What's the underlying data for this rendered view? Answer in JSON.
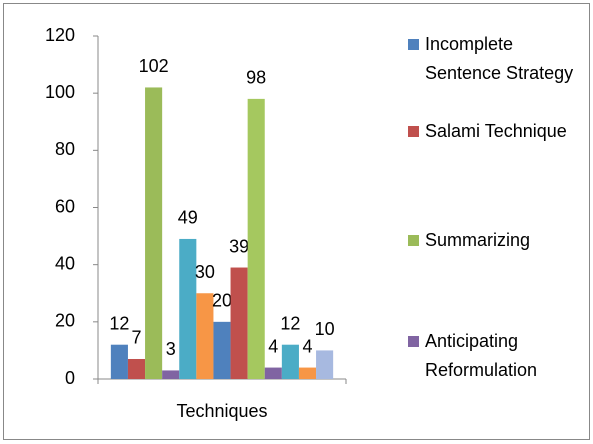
{
  "chart_data": {
    "type": "bar",
    "categories": [
      "Techniques"
    ],
    "series": [
      {
        "name": "Incomplete Sentence Strategy",
        "color": "#4f81bd",
        "values": [
          12
        ]
      },
      {
        "name": "Salami Technique",
        "color": "#c0504d",
        "values": [
          7
        ]
      },
      {
        "name": "Summarizing",
        "color": "#9bbb59",
        "values": [
          102
        ]
      },
      {
        "name": "Anticipating Reformulation",
        "color": "#8064a2",
        "values": [
          3
        ]
      },
      {
        "color": "#4bacc6",
        "values": [
          49
        ]
      },
      {
        "color": "#f79646",
        "values": [
          30
        ]
      },
      {
        "color": "#4f81bd",
        "values": [
          20
        ]
      },
      {
        "color": "#c0504d",
        "values": [
          39
        ]
      },
      {
        "color": "#a5c85f",
        "values": [
          98
        ]
      },
      {
        "color": "#8064a2",
        "values": [
          4
        ]
      },
      {
        "color": "#4bacc6",
        "values": [
          12
        ]
      },
      {
        "color": "#f79646",
        "values": [
          4
        ]
      },
      {
        "color": "#a7b9e0",
        "values": [
          10
        ]
      }
    ],
    "ylim": [
      0,
      120
    ],
    "yticks": [
      0,
      20,
      40,
      60,
      80,
      100,
      120
    ],
    "grid": false,
    "legend": "right",
    "data_labels": true
  }
}
